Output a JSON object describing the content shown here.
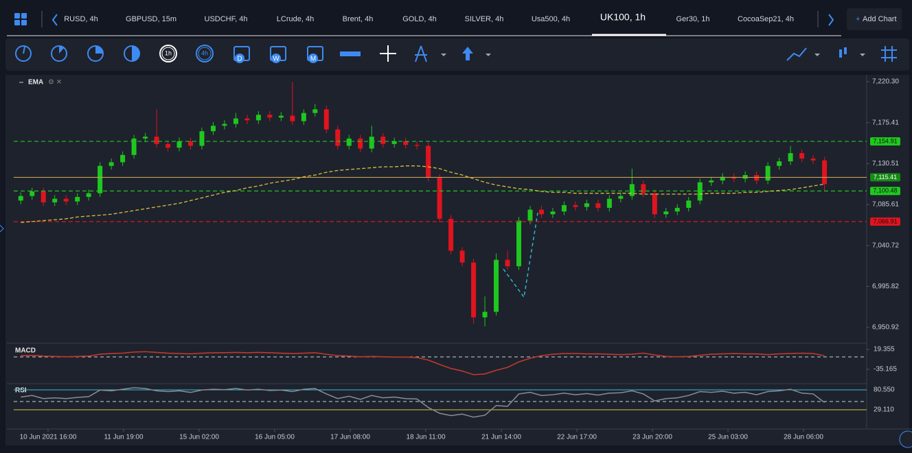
{
  "tabs": [
    "RUSD, 4h",
    "GBPUSD, 15m",
    "USDCHF, 4h",
    "LCrude, 4h",
    "Brent, 4h",
    "GOLD, 4h",
    "SILVER, 4h",
    "Usa500, 4h",
    "UK100, 1h",
    "Ger30, 1h",
    "CocoaSep21, 4h"
  ],
  "add_chart": "Add Chart",
  "toolbar": {
    "hour": "1h",
    "four_hour": "4h",
    "day": "D",
    "week": "W",
    "month": "M"
  },
  "chart_data": {
    "type": "candlestick",
    "indicator": "EMA",
    "up_color": "#1ec81e",
    "down_color": "#e0141e",
    "ema_color": "#d8c23a",
    "ylim": [
      6935.9,
      7227.1
    ],
    "yticks": [
      {
        "value": 7220.3,
        "label": "7,220.30"
      },
      {
        "value": 7175.41,
        "label": "7,175.41"
      },
      {
        "value": 7130.51,
        "label": "7,130.51"
      },
      {
        "value": 7085.61,
        "label": "7,085.61"
      },
      {
        "value": 7040.72,
        "label": "7,040.72"
      },
      {
        "value": 6995.82,
        "label": "6,995.82"
      },
      {
        "value": 6950.92,
        "label": "6,950.92"
      }
    ],
    "xtick_labels": [
      "10 Jun 2021 16:00",
      "11 Jun 19:00",
      "15 Jun 02:00",
      "16 Jun 05:00",
      "17 Jun 08:00",
      "18 Jun 11:00",
      "21 Jun 14:00",
      "22 Jun 17:00",
      "23 Jun 20:00",
      "25 Jun 03:00",
      "28 Jun 06:00"
    ],
    "levels": [
      {
        "value": 7154.91,
        "label": "7,154.91",
        "color": "#1ec81e",
        "label_color": "#1ec81e",
        "style": "dashed"
      },
      {
        "value": 7115.41,
        "label": "7,115.41",
        "color": "#c8a050",
        "label_color": "#158a15",
        "style": "solid"
      },
      {
        "value": 7100.48,
        "label": "7,100.48",
        "color": "#1ec81e",
        "label_color": "#1ec81e",
        "style": "dashed"
      },
      {
        "value": 7066.91,
        "label": "7,066.91",
        "color": "#e0141e",
        "label_color": "#e0141e",
        "style": "dashed"
      }
    ],
    "open": [
      7090,
      7095,
      7100,
      7088,
      7092,
      7089,
      7094,
      7098,
      7128,
      7132,
      7140,
      7158,
      7160,
      7152,
      7148,
      7155,
      7150,
      7166,
      7172,
      7174,
      7180,
      7178,
      7184,
      7181,
      7183,
      7177,
      7186,
      7190,
      7168,
      7150,
      7158,
      7147,
      7160,
      7152,
      7155,
      7151,
      7150,
      7115,
      7070,
      7035,
      7022,
      6962,
      6968,
      7025,
      7018,
      7068,
      7080,
      7075,
      7078,
      7085,
      7083,
      7087,
      7082,
      7092,
      7095,
      7108,
      7098,
      7075,
      7078,
      7082,
      7090,
      7110,
      7112,
      7116,
      7114,
      7118,
      7112,
      7128,
      7133,
      7142,
      7136,
      7134
    ],
    "high": [
      7099,
      7104,
      7104,
      7096,
      7096,
      7098,
      7102,
      7132,
      7136,
      7144,
      7162,
      7164,
      7190,
      7156,
      7159,
      7159,
      7170,
      7176,
      7178,
      7186,
      7184,
      7188,
      7188,
      7187,
      7220,
      7190,
      7196,
      7194,
      7172,
      7162,
      7162,
      7172,
      7164,
      7159,
      7159,
      7155,
      7154,
      7119,
      7074,
      7039,
      7026,
      6985,
      7032,
      7035,
      7072,
      7084,
      7084,
      7082,
      7089,
      7089,
      7091,
      7091,
      7096,
      7099,
      7125,
      7112,
      7102,
      7082,
      7086,
      7094,
      7114,
      7116,
      7120,
      7120,
      7122,
      7122,
      7132,
      7137,
      7150,
      7146,
      7140,
      7138
    ],
    "low": [
      7086,
      7091,
      7084,
      7084,
      7085,
      7085,
      7090,
      7094,
      7124,
      7128,
      7136,
      7154,
      7148,
      7144,
      7144,
      7146,
      7146,
      7162,
      7168,
      7170,
      7174,
      7174,
      7177,
      7177,
      7173,
      7173,
      7182,
      7164,
      7146,
      7146,
      7143,
      7143,
      7148,
      7148,
      7147,
      7146,
      7111,
      7066,
      7031,
      7018,
      6955,
      6952,
      6964,
      7014,
      7014,
      7064,
      7071,
      7071,
      7074,
      7079,
      7079,
      7078,
      7078,
      7088,
      7091,
      7094,
      7071,
      7071,
      7074,
      7078,
      7086,
      7106,
      7108,
      7110,
      7110,
      7108,
      7108,
      7124,
      7129,
      7132,
      7130,
      7100
    ],
    "close": [
      7095,
      7100,
      7088,
      7092,
      7089,
      7094,
      7098,
      7128,
      7132,
      7140,
      7158,
      7160,
      7152,
      7148,
      7155,
      7150,
      7166,
      7172,
      7174,
      7180,
      7178,
      7184,
      7181,
      7183,
      7177,
      7186,
      7190,
      7168,
      7150,
      7158,
      7147,
      7160,
      7152,
      7155,
      7151,
      7150,
      7115,
      7070,
      7035,
      7022,
      6962,
      6968,
      7025,
      7018,
      7068,
      7080,
      7075,
      7078,
      7085,
      7083,
      7087,
      7082,
      7092,
      7095,
      7108,
      7098,
      7075,
      7078,
      7082,
      7090,
      7110,
      7112,
      7116,
      7114,
      7118,
      7112,
      7128,
      7133,
      7142,
      7136,
      7134,
      7108
    ],
    "ema": [
      7066,
      7067,
      7068,
      7069,
      7070,
      7072,
      7073,
      7074,
      7075,
      7077,
      7079,
      7081,
      7083,
      7085,
      7087,
      7090,
      7093,
      7096,
      7099,
      7101,
      7104,
      7106,
      7109,
      7111,
      7113,
      7116,
      7118,
      7121,
      7123,
      7124,
      7125,
      7126,
      7127,
      7127,
      7128,
      7128,
      7127,
      7125,
      7121,
      7118,
      7114,
      7110,
      7107,
      7105,
      7103,
      7102,
      7100,
      7099,
      7099,
      7098,
      7098,
      7098,
      7098,
      7098,
      7098,
      7097,
      7097,
      7097,
      7097,
      7097,
      7097,
      7098,
      7098,
      7098,
      7099,
      7099,
      7100,
      7101,
      7102,
      7104,
      7106,
      7108
    ],
    "macd": {
      "label": "MACD",
      "color": "#c0392b",
      "ylim": [
        -72.8,
        36.3
      ],
      "yticks": [
        19.355,
        -35.165
      ],
      "values": [
        2,
        3,
        1,
        0,
        -1,
        0,
        1,
        6,
        8,
        9,
        12,
        13,
        11,
        9,
        8,
        7,
        9,
        10,
        10,
        11,
        10,
        11,
        10,
        9,
        8,
        9,
        10,
        6,
        2,
        1,
        -1,
        0,
        -1,
        -2,
        -2,
        -3,
        -10,
        -22,
        -33,
        -40,
        -50,
        -48,
        -38,
        -30,
        -15,
        -5,
        2,
        6,
        8,
        8,
        7,
        7,
        6,
        5,
        6,
        9,
        4,
        0,
        -1,
        0,
        3,
        6,
        7,
        8,
        7,
        7,
        5,
        7,
        8,
        9,
        8,
        2
      ]
    },
    "rsi": {
      "label": "RSI",
      "color": "#8a8d96",
      "ylim": [
        -20.5,
        94.7
      ],
      "yticks": [
        {
          "value": 80.55,
          "label": "80.550"
        },
        {
          "value": 29.11,
          "label": "29.110"
        }
      ],
      "values": [
        62,
        66,
        58,
        60,
        58,
        61,
        63,
        80,
        78,
        82,
        86,
        84,
        78,
        76,
        78,
        74,
        80,
        82,
        81,
        84,
        80,
        82,
        79,
        80,
        76,
        82,
        84,
        70,
        58,
        64,
        56,
        66,
        60,
        62,
        58,
        57,
        35,
        20,
        14,
        18,
        10,
        15,
        40,
        38,
        70,
        74,
        66,
        68,
        72,
        68,
        71,
        67,
        72,
        73,
        78,
        70,
        52,
        58,
        60,
        66,
        76,
        74,
        77,
        72,
        74,
        68,
        76,
        78,
        82,
        72,
        70,
        48
      ]
    }
  }
}
